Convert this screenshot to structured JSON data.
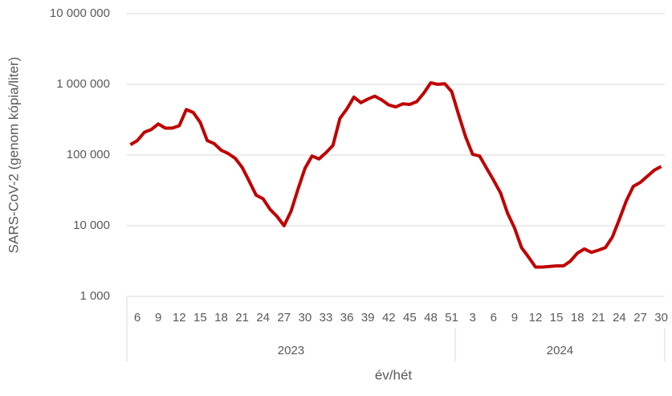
{
  "chart_data": {
    "type": "line",
    "x_title": "év/hét",
    "y_title": "SARS-CoV-2 (genom kópia/liter)",
    "categories": [
      null,
      "6",
      null,
      null,
      "9",
      null,
      null,
      "12",
      null,
      null,
      "15",
      null,
      null,
      "18",
      null,
      null,
      "21",
      null,
      null,
      "24",
      null,
      null,
      "27",
      null,
      null,
      "30",
      null,
      null,
      "33",
      null,
      null,
      "36",
      null,
      null,
      "39",
      null,
      null,
      "42",
      null,
      null,
      "45",
      null,
      null,
      "48",
      null,
      null,
      "51",
      null,
      null,
      "3",
      null,
      null,
      "6",
      null,
      null,
      "9",
      null,
      null,
      "12",
      null,
      null,
      "15",
      null,
      null,
      "18",
      null,
      null,
      "21",
      null,
      null,
      "24",
      null,
      null,
      "27",
      null,
      null,
      "30"
    ],
    "groups": [
      {
        "label": "2023",
        "count": 47
      },
      {
        "label": "2024",
        "count": 30
      }
    ],
    "series": [
      {
        "color": "#c00000",
        "values": [
          140000,
          160000,
          210000,
          230000,
          275000,
          240000,
          240000,
          260000,
          440000,
          400000,
          290000,
          160000,
          145000,
          117000,
          105000,
          90000,
          67000,
          43000,
          27000,
          24000,
          17000,
          13500,
          10000,
          16000,
          33000,
          65000,
          97000,
          88000,
          108000,
          137000,
          330000,
          450000,
          660000,
          550000,
          620000,
          680000,
          600000,
          510000,
          480000,
          530000,
          520000,
          570000,
          750000,
          1050000,
          1000000,
          1020000,
          790000,
          370000,
          180000,
          102000,
          97000,
          65000,
          44000,
          29000,
          15000,
          9300,
          4900,
          3600,
          2600,
          2600,
          2650,
          2700,
          2700,
          3150,
          4100,
          4700,
          4200,
          4500,
          4900,
          6900,
          12300,
          22500,
          36000,
          41000,
          50000,
          61000,
          69000
        ]
      }
    ],
    "log_scale": true,
    "ylim": [
      1000,
      10000000
    ],
    "yticks": [
      {
        "value": 1000,
        "label": "1 000"
      },
      {
        "value": 10000,
        "label": "10 000"
      },
      {
        "value": 100000,
        "label": "100 000"
      },
      {
        "value": 1000000,
        "label": "1 000 000"
      },
      {
        "value": 10000000,
        "label": "10 000 000"
      }
    ],
    "grid": true
  }
}
